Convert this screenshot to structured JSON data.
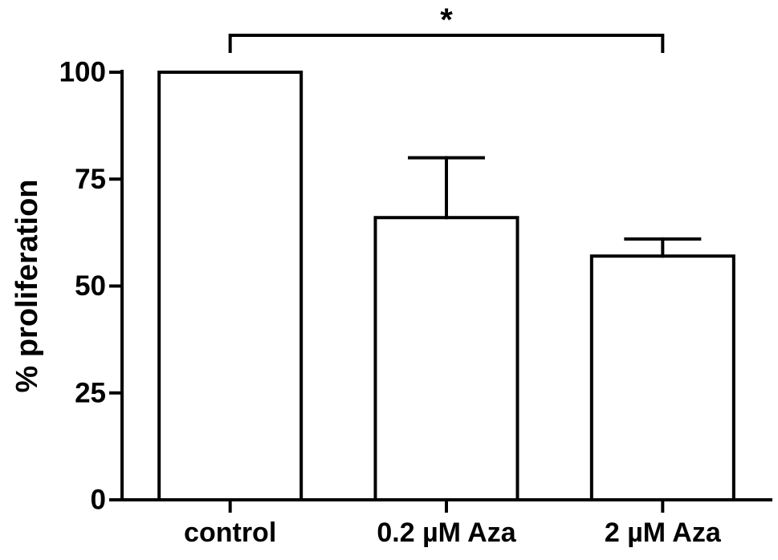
{
  "chart_data": {
    "type": "bar",
    "categories": [
      "control",
      "0.2 µM Aza",
      "2 µM Aza"
    ],
    "values": [
      100,
      66,
      57
    ],
    "error_upper": [
      100,
      80,
      61
    ],
    "title": "",
    "xlabel": "",
    "ylabel": "% proliferation",
    "ylim": [
      0,
      100
    ],
    "yticks": [
      0,
      25,
      50,
      75,
      100
    ],
    "grid": false,
    "colors": {
      "bar_fill": "#ffffff",
      "bar_stroke": "#000000",
      "axis": "#000000",
      "text": "#000000"
    },
    "annotations": [
      {
        "type": "significance",
        "between": [
          "control",
          "2 µM Aza"
        ],
        "label": "*"
      }
    ]
  }
}
